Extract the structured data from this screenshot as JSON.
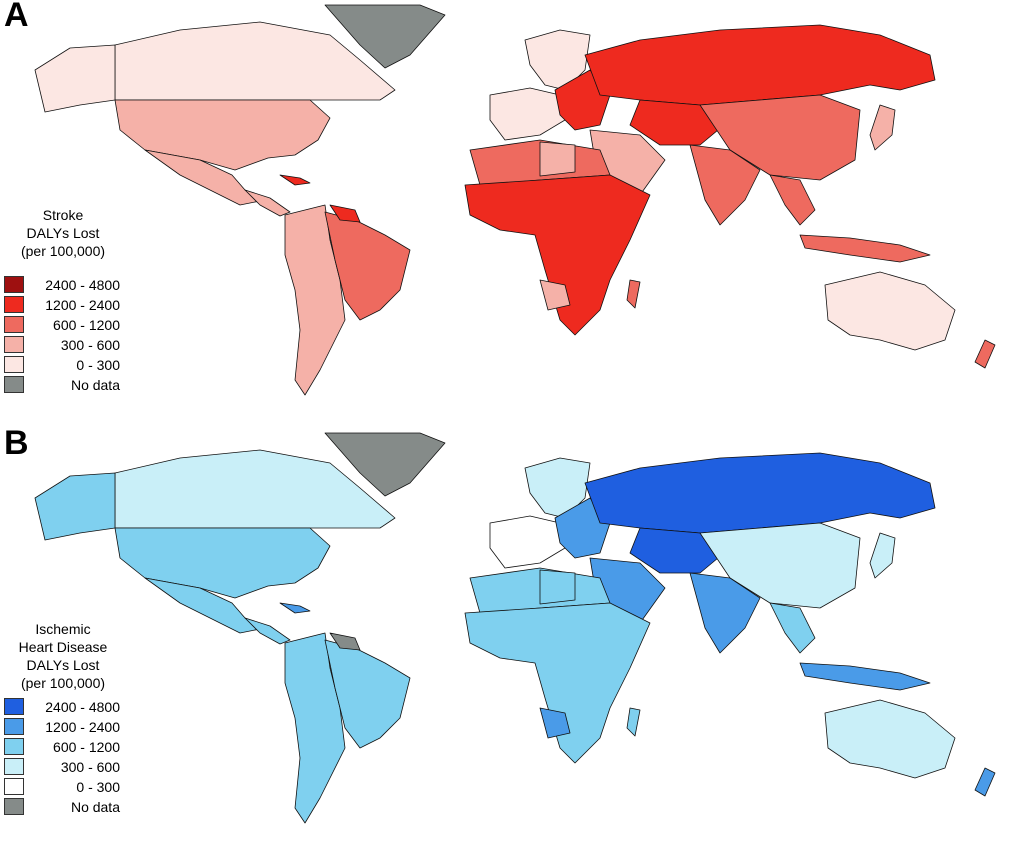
{
  "panel_a": {
    "letter": "A",
    "legend": {
      "title_lines": [
        "Stroke",
        "DALYs Lost",
        "(per 100,000)"
      ],
      "items": [
        {
          "label": "2400 - 4800",
          "color": "#9e1010"
        },
        {
          "label": "1200 - 2400",
          "color": "#ee2a1f"
        },
        {
          "label": "600 - 1200",
          "color": "#ee6a5f"
        },
        {
          "label": "300 - 600",
          "color": "#f5b1a8"
        },
        {
          "label": "0 - 300",
          "color": "#fce7e3"
        },
        {
          "label": "No data",
          "color": "#858b89"
        }
      ]
    }
  },
  "panel_b": {
    "letter": "B",
    "legend": {
      "title_lines": [
        "Ischemic",
        "Heart Disease",
        "DALYs Lost",
        "(per 100,000)"
      ],
      "items": [
        {
          "label": "2400 - 4800",
          "color": "#1f5fe0"
        },
        {
          "label": "1200 - 2400",
          "color": "#4a9be8"
        },
        {
          "label": "600 - 1200",
          "color": "#7fd0ef"
        },
        {
          "label": "300 - 600",
          "color": "#c9eff8"
        },
        {
          "label": "0 - 300",
          "color": "#ffffff"
        },
        {
          "label": "No data",
          "color": "#858b89"
        }
      ]
    }
  }
}
